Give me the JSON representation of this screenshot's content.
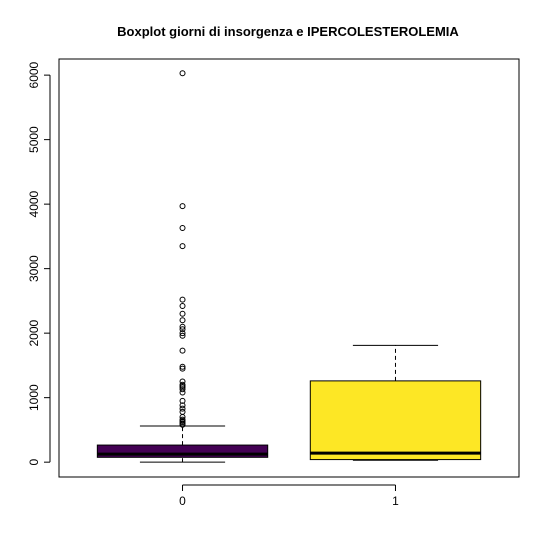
{
  "chart_data": {
    "type": "boxplot",
    "title": "Boxplot giorni di insorgenza e IPERCOLESTEROLEMIA",
    "xlabel": "",
    "ylabel": "",
    "categories": [
      "0",
      "1"
    ],
    "ylim": [
      -230,
      6250
    ],
    "yticks": [
      0,
      1000,
      2000,
      3000,
      4000,
      5000,
      6000
    ],
    "grid": false,
    "legend": "none",
    "boxes": [
      {
        "category": "0",
        "color": "#440154",
        "min": 0,
        "q1": 75,
        "median": 125,
        "q3": 265,
        "max": 560,
        "outliers": [
          580,
          600,
          620,
          640,
          660,
          700,
          780,
          830,
          880,
          950,
          1080,
          1130,
          1160,
          1180,
          1200,
          1250,
          1450,
          1480,
          1730,
          1960,
          2000,
          2060,
          2100,
          2200,
          2300,
          2420,
          2520,
          3350,
          3630,
          3970,
          6030
        ]
      },
      {
        "category": "1",
        "color": "#FDE725",
        "min": 30,
        "q1": 40,
        "median": 140,
        "q3": 1260,
        "max": 1810,
        "outliers": []
      }
    ]
  }
}
